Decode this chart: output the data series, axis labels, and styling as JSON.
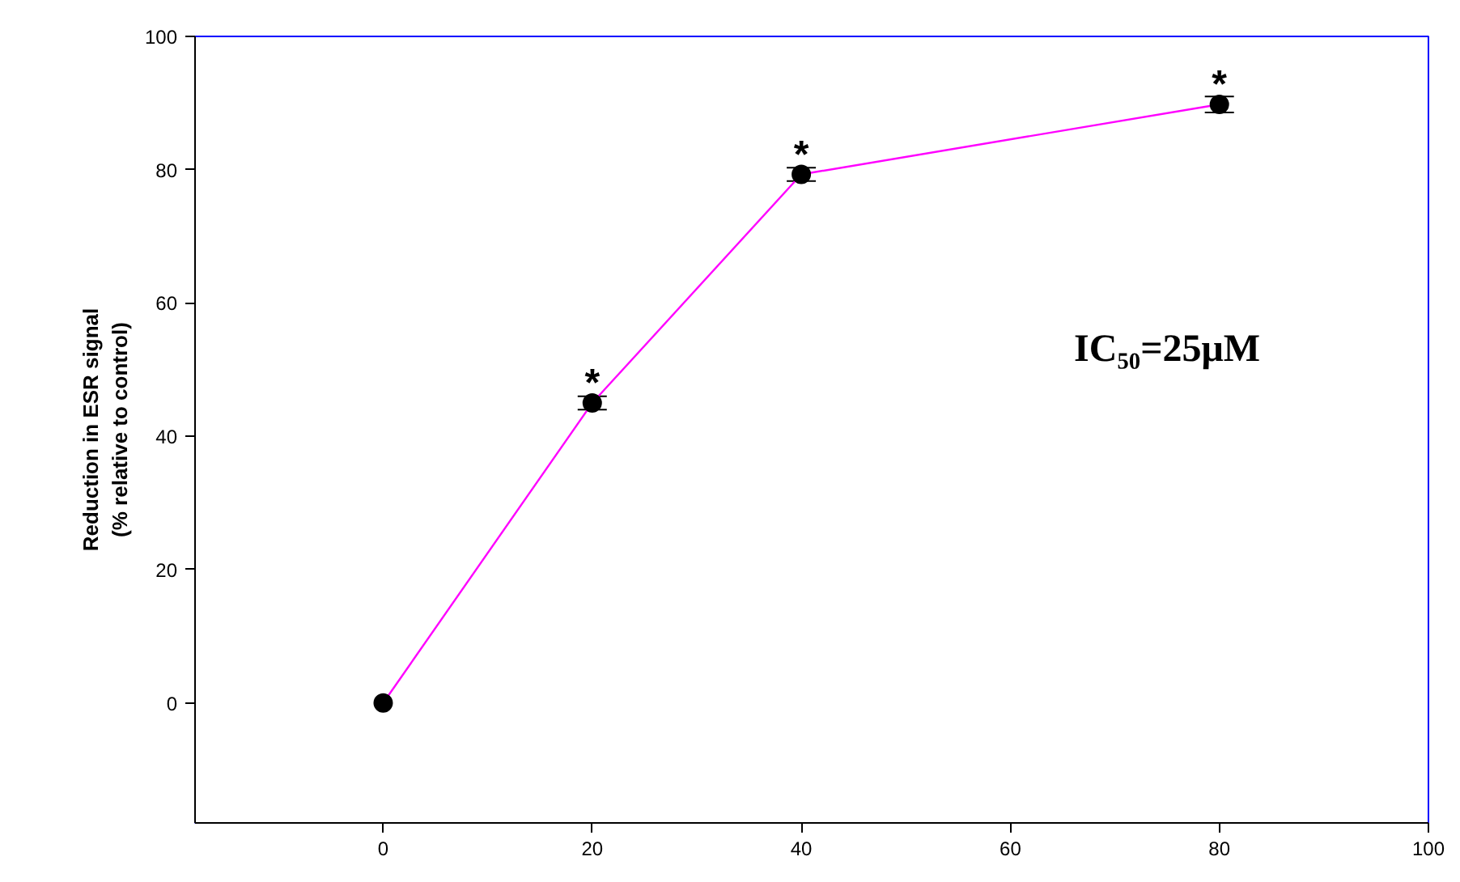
{
  "chart_data": {
    "type": "line",
    "ylabel": "Reduction in ESR signal\n(% relative to control)",
    "x": [
      0,
      20,
      40,
      80
    ],
    "series": [
      {
        "color": "#ff00ff",
        "colors": [
          "#000000",
          "#000000",
          "#000000",
          "#000000"
        ],
        "values": [
          0,
          45,
          79.3,
          89.8
        ],
        "errors": [
          null,
          1,
          1,
          1.2
        ]
      }
    ],
    "xlim": [
      -18,
      100
    ],
    "ylim": [
      -18,
      100
    ],
    "xticks": [
      0,
      20,
      40,
      60,
      80,
      100
    ],
    "yticks": [
      0,
      20,
      40,
      60,
      80,
      100
    ],
    "marker": "circle",
    "line_style": "solid",
    "grid": false,
    "annotations": [
      {
        "text": "*",
        "x": 20,
        "y": 45
      },
      {
        "text": "*",
        "x": 40,
        "y": 79.3
      },
      {
        "text": "*",
        "x": 80,
        "y": 89.8
      },
      "IC₅₀=25μM"
    ]
  }
}
